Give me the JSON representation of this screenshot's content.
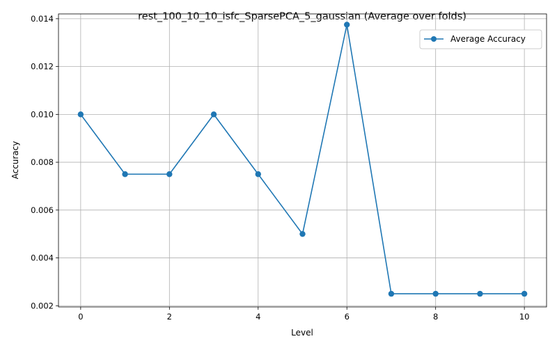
{
  "chart_data": {
    "type": "line",
    "title": "rest_100_10_10_isfc_SparsePCA_5_gaussian (Average over folds)",
    "xlabel": "Level",
    "ylabel": "Accuracy",
    "xlim": [
      -0.5,
      10.5
    ],
    "ylim": [
      0.00195,
      0.0142
    ],
    "x_ticks": [
      0,
      2,
      4,
      6,
      8,
      10
    ],
    "y_ticks": [
      0.002,
      0.004,
      0.006,
      0.008,
      0.01,
      0.012,
      0.014
    ],
    "y_tick_labels": [
      "0.002",
      "0.004",
      "0.006",
      "0.008",
      "0.010",
      "0.012",
      "0.014"
    ],
    "grid": true,
    "legend_position": "top-right",
    "series": [
      {
        "name": "Average Accuracy",
        "color": "#1f77b4",
        "marker": "circle",
        "x": [
          0,
          1,
          2,
          3,
          4,
          5,
          6,
          7,
          8,
          9,
          10
        ],
        "y": [
          0.01,
          0.0075,
          0.0075,
          0.01,
          0.0075,
          0.005,
          0.01375,
          0.0025,
          0.0025,
          0.0025,
          0.0025
        ]
      }
    ]
  }
}
